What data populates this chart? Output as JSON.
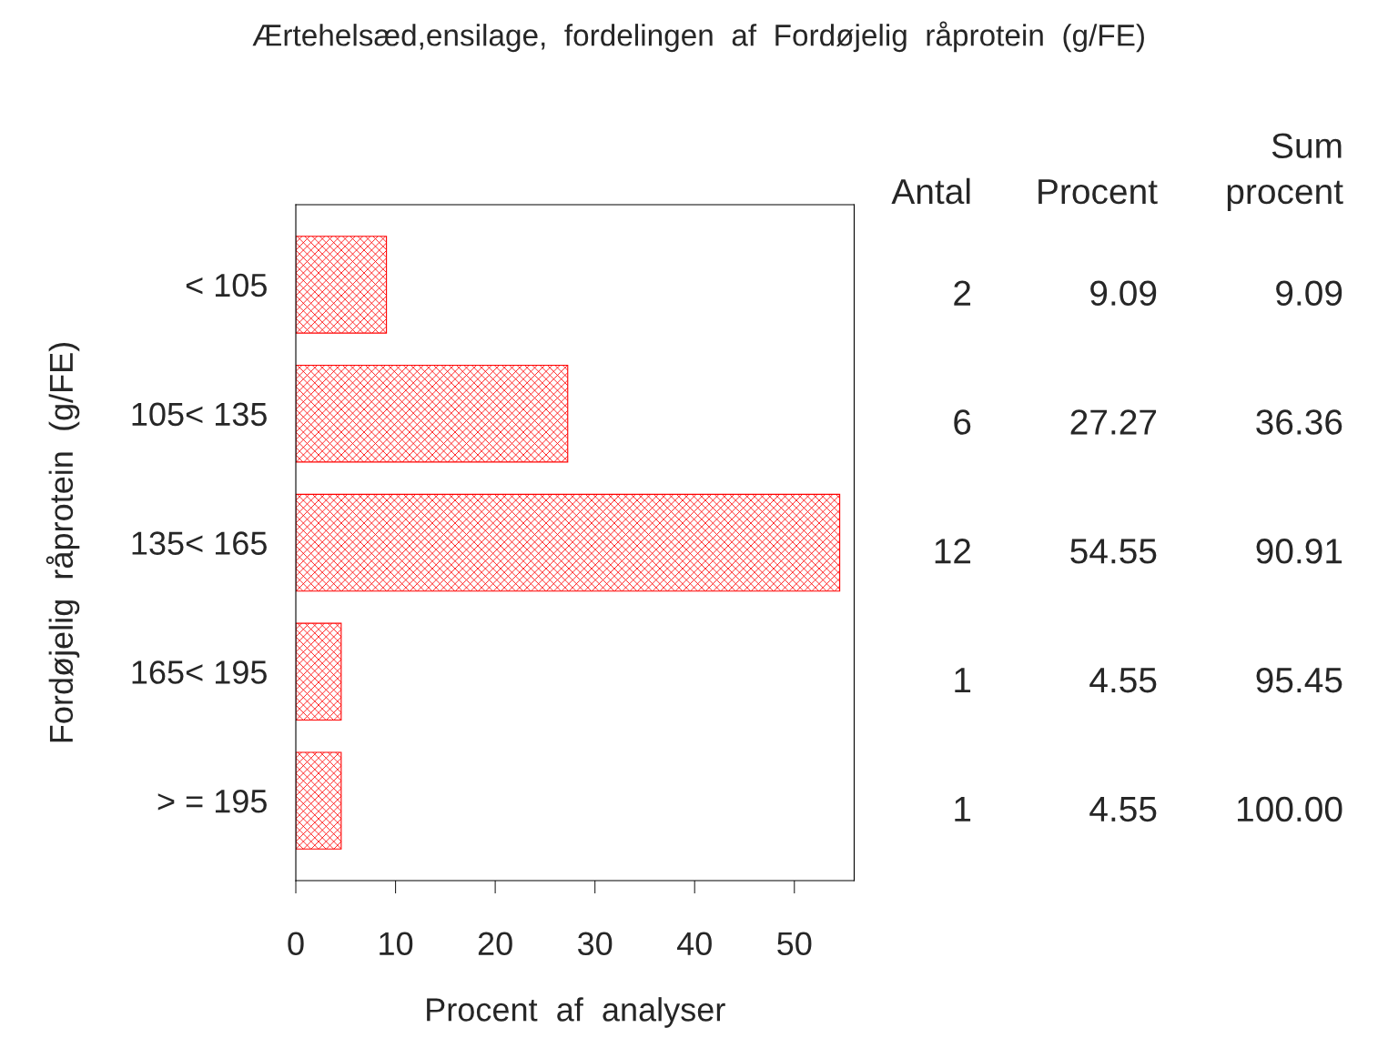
{
  "chart_data": {
    "type": "bar",
    "orientation": "horizontal",
    "title": "Ærtehelsæd,ensilage,  fordelingen  af  Fordøjelig  råprotein  (g/FE)",
    "xlabel": "Procent  af  analyser",
    "ylabel": "Fordøjelig  råprotein  (g/FE)",
    "categories": [
      "< 105",
      "105< 135",
      "135< 165",
      "165< 195",
      "> = 195"
    ],
    "values": [
      9.09,
      27.27,
      54.55,
      4.55,
      4.55
    ],
    "value_labels": [
      "9.09",
      "27.27",
      "54.55",
      "4.55",
      "4.55"
    ],
    "color": "#ff0000",
    "xlim": [
      0,
      56
    ],
    "xticks": [
      0,
      10,
      20,
      30,
      40,
      50
    ],
    "grid": false,
    "annotations": [
      "Antal",
      "Procent",
      "Sum\nprocent",
      "2",
      "6",
      "12",
      "1",
      "1",
      "9.09",
      "36.36",
      "90.91",
      "95.45",
      "100.00"
    ]
  }
}
